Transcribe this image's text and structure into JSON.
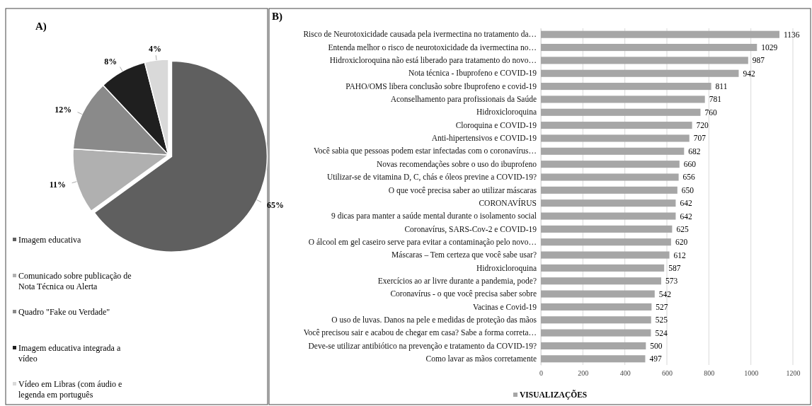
{
  "chart_data": [
    {
      "type": "pie",
      "title": "A)",
      "categories": [
        "Imagem educativa",
        "Comunicado sobre publicação de Nota Técnica ou Alerta",
        "Quadro \"Fake ou Verdade\"",
        "Imagem educativa integrada a vídeo",
        "Vídeo em Libras (com áudio e legenda em português"
      ],
      "values": [
        65,
        11,
        12,
        8,
        4
      ],
      "colors": [
        "#5f5f5f",
        "#b0b0b0",
        "#8a8a8a",
        "#1f1f1f",
        "#d9d9d9"
      ],
      "value_labels": [
        "65%",
        "11%",
        "12%",
        "8%",
        "4%"
      ],
      "legend": "bottom left"
    },
    {
      "type": "bar",
      "title": "B)",
      "orientation": "horizontal",
      "categories": [
        "Risco de Neurotoxicidade causada pela ivermectina no tratamento da…",
        "Entenda melhor o risco de neurotoxicidade da ivermectina no…",
        "Hidroxicloroquina não está liberado para tratamento do novo…",
        "Nota técnica - Ibuprofeno e COVID-19",
        "PAHO/OMS libera conclusão sobre Ibuprofeno e covid-19",
        "Aconselhamento para profissionais da Saúde",
        "Hidroxicloroquina",
        "Cloroquina e COVID-19",
        "Anti-hipertensivos e COVID-19",
        "Você sabia que pessoas podem estar infectadas com o coronavírus…",
        "Novas recomendações sobre o uso do ibuprofeno",
        "Utilizar-se de vitamina D, C, chás e óleos previne a COVID-19?",
        "O que você precisa saber ao utilizar máscaras",
        "CORONAVÍRUS",
        "9 dicas para manter a saúde mental durante o isolamento social",
        "Coronavírus, SARS-Cov-2 e COVID-19",
        "O álcool em gel caseiro serve para evitar a contaminação pelo novo…",
        "Máscaras – Tem certeza que você sabe usar?",
        "Hidroxicloroquina",
        "Exercícios ao ar livre durante a pandemia, pode?",
        "Coronavírus - o que você precisa saber sobre",
        "Vacinas e Covid-19",
        "O uso de luvas. Danos na pele e medidas de proteção das mãos",
        "Você precisou sair e acabou de chegar em casa? Sabe a forma correta…",
        "Deve-se utilizar antibiótico na prevenção e tratamento da COVID-19?",
        "Como lavar as mãos corretamente"
      ],
      "series": [
        {
          "name": "VISUALIZAÇÕES",
          "color": "#a6a6a6",
          "values": [
            1136,
            1029,
            987,
            942,
            811,
            781,
            760,
            720,
            707,
            682,
            660,
            656,
            650,
            642,
            642,
            625,
            620,
            612,
            587,
            573,
            542,
            527,
            525,
            524,
            500,
            497
          ]
        }
      ],
      "xlim": [
        0,
        1200
      ],
      "xticks": [
        0,
        200,
        400,
        600,
        800,
        1000,
        1200
      ],
      "grid": "x",
      "data_labels": true,
      "legend": "bottom left"
    }
  ]
}
